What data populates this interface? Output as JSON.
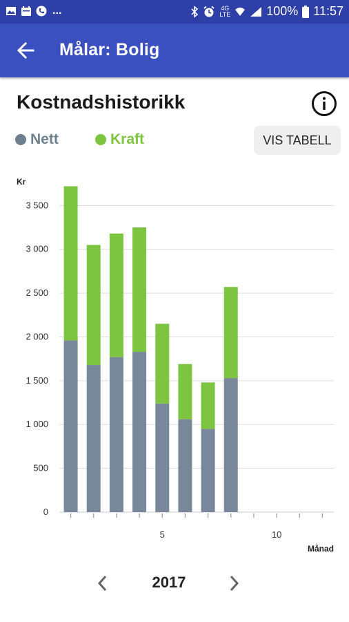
{
  "status_bar": {
    "left_icons": [
      "image-icon",
      "calendar-icon",
      "phone-icon"
    ],
    "overflow": "...",
    "network": "4G",
    "battery": "100%",
    "time": "11:57"
  },
  "app_bar": {
    "title": "Målar: Bolig"
  },
  "header": {
    "title": "Kostnadshistorikk",
    "info_icon": "info-icon"
  },
  "legend": [
    {
      "label": "Nett",
      "color": "#78889a"
    },
    {
      "label": "Kraft",
      "color": "#7dc540"
    }
  ],
  "buttons": {
    "vis_tabell": "VIS TABELL"
  },
  "chart_data": {
    "type": "bar",
    "stacked": true,
    "ylabel": "Kr",
    "xlabel": "Månad",
    "ylim": [
      0,
      3700
    ],
    "xlim": [
      0.5,
      12.5
    ],
    "yticks": [
      {
        "value": 0,
        "label": "0"
      },
      {
        "value": 500,
        "label": "500"
      },
      {
        "value": 1000,
        "label": "1 000"
      },
      {
        "value": 1500,
        "label": "1 500"
      },
      {
        "value": 2000,
        "label": "2 000"
      },
      {
        "value": 2500,
        "label": "2 500"
      },
      {
        "value": 3000,
        "label": "3 000"
      },
      {
        "value": 3500,
        "label": "3 500"
      }
    ],
    "xticks": [
      {
        "value": 5,
        "label": "5"
      },
      {
        "value": 10,
        "label": "10"
      }
    ],
    "x": [
      1,
      2,
      3,
      4,
      5,
      6,
      7,
      8
    ],
    "series": [
      {
        "name": "Nett",
        "color": "#78889a",
        "values": [
          1960,
          1680,
          1770,
          1830,
          1240,
          1060,
          950,
          1530
        ]
      },
      {
        "name": "Kraft",
        "color": "#7dc540",
        "values": [
          1760,
          1370,
          1410,
          1420,
          910,
          630,
          530,
          1040
        ]
      }
    ],
    "grid": true
  },
  "year_nav": {
    "year": "2017"
  }
}
